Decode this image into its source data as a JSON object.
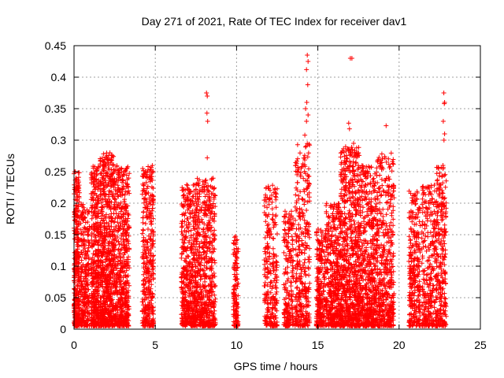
{
  "chart_data": {
    "type": "scatter",
    "title": "Day 271 of 2021, Rate Of TEC Index for receiver dav1",
    "xlabel": "GPS time / hours",
    "ylabel": "ROTI / TECUs",
    "xlim": [
      0,
      25
    ],
    "ylim": [
      0,
      0.45
    ],
    "xticks": [
      0,
      5,
      10,
      15,
      20,
      25
    ],
    "yticks": [
      0,
      0.05,
      0.1,
      0.15,
      0.2,
      0.25,
      0.3,
      0.35,
      0.4,
      0.45
    ],
    "xtick_labels": [
      "0",
      "5",
      "10",
      "15",
      "20",
      "25"
    ],
    "ytick_labels": [
      "0",
      "0.05",
      "0.1",
      "0.15",
      "0.2",
      "0.25",
      "0.3",
      "0.35",
      "0.4",
      "0.45"
    ],
    "grid": true,
    "marker": "plus",
    "color": "#ff0000",
    "clusters": [
      {
        "x": [
          0.0,
          0.35
        ],
        "ymax": 0.25,
        "density": 340
      },
      {
        "x": [
          0.4,
          0.95
        ],
        "ymax": 0.2,
        "density": 260
      },
      {
        "x": [
          1.05,
          1.55
        ],
        "ymax": 0.26,
        "density": 380
      },
      {
        "x": [
          1.6,
          2.45
        ],
        "ymax": 0.28,
        "density": 620
      },
      {
        "x": [
          2.45,
          3.4
        ],
        "ymax": 0.26,
        "density": 560
      },
      {
        "x": [
          4.2,
          4.9
        ],
        "ymax": 0.26,
        "density": 360
      },
      {
        "x": [
          6.6,
          7.5
        ],
        "ymax": 0.23,
        "density": 460
      },
      {
        "x": [
          7.5,
          8.7
        ],
        "ymax": 0.24,
        "density": 560
      },
      {
        "x": [
          9.8,
          10.1
        ],
        "ymax": 0.15,
        "density": 130
      },
      {
        "x": [
          11.7,
          12.5
        ],
        "ymax": 0.23,
        "density": 260
      },
      {
        "x": [
          12.9,
          13.5
        ],
        "ymax": 0.19,
        "density": 200
      },
      {
        "x": [
          13.6,
          14.5
        ],
        "ymax": 0.3,
        "density": 340
      },
      {
        "x": [
          14.9,
          15.5
        ],
        "ymax": 0.16,
        "density": 240
      },
      {
        "x": [
          15.5,
          16.4
        ],
        "ymax": 0.2,
        "density": 420
      },
      {
        "x": [
          16.4,
          17.6
        ],
        "ymax": 0.29,
        "density": 760
      },
      {
        "x": [
          17.6,
          18.6
        ],
        "ymax": 0.26,
        "density": 520
      },
      {
        "x": [
          18.6,
          19.7
        ],
        "ymax": 0.28,
        "density": 460
      },
      {
        "x": [
          20.6,
          21.3
        ],
        "ymax": 0.22,
        "density": 280
      },
      {
        "x": [
          21.4,
          22.3
        ],
        "ymax": 0.23,
        "density": 300
      },
      {
        "x": [
          22.3,
          22.9
        ],
        "ymax": 0.26,
        "density": 250
      }
    ],
    "outliers": [
      {
        "x": 8.15,
        "y": 0.375
      },
      {
        "x": 8.2,
        "y": 0.37
      },
      {
        "x": 8.18,
        "y": 0.343
      },
      {
        "x": 8.22,
        "y": 0.33
      },
      {
        "x": 8.2,
        "y": 0.272
      },
      {
        "x": 14.35,
        "y": 0.435
      },
      {
        "x": 14.4,
        "y": 0.425
      },
      {
        "x": 14.3,
        "y": 0.412
      },
      {
        "x": 14.38,
        "y": 0.388
      },
      {
        "x": 14.32,
        "y": 0.36
      },
      {
        "x": 14.25,
        "y": 0.35
      },
      {
        "x": 14.4,
        "y": 0.34
      },
      {
        "x": 14.3,
        "y": 0.33
      },
      {
        "x": 14.2,
        "y": 0.308
      },
      {
        "x": 17.1,
        "y": 0.43
      },
      {
        "x": 17.0,
        "y": 0.43
      },
      {
        "x": 16.9,
        "y": 0.327
      },
      {
        "x": 16.95,
        "y": 0.318
      },
      {
        "x": 17.2,
        "y": 0.295
      },
      {
        "x": 19.2,
        "y": 0.323
      },
      {
        "x": 22.75,
        "y": 0.375
      },
      {
        "x": 22.8,
        "y": 0.36
      },
      {
        "x": 22.78,
        "y": 0.358
      },
      {
        "x": 22.72,
        "y": 0.33
      },
      {
        "x": 22.8,
        "y": 0.31
      },
      {
        "x": 22.76,
        "y": 0.3
      },
      {
        "x": 22.7,
        "y": 0.26
      }
    ]
  }
}
